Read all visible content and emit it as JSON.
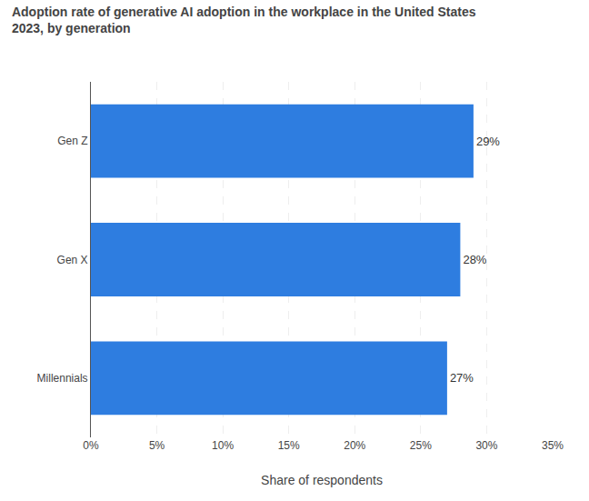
{
  "chart_data": {
    "type": "bar",
    "orientation": "horizontal",
    "title": "Adoption rate of generative AI adoption in the workplace in the United States",
    "subtitle": "2023, by generation",
    "categories": [
      "Millennials",
      "Gen X",
      "Gen Z"
    ],
    "values": [
      27,
      28,
      29
    ],
    "value_labels": [
      "27%",
      "28%",
      "29%"
    ],
    "data_labels": true,
    "color": "#2e7de0",
    "xlabel": "Share of respondents",
    "xlim": [
      0,
      35
    ],
    "xticks": [
      {
        "value": 0,
        "label": "0%"
      },
      {
        "value": 5,
        "label": "5%"
      },
      {
        "value": 10,
        "label": "10%"
      },
      {
        "value": 15,
        "label": "15%"
      },
      {
        "value": 20,
        "label": "20%"
      },
      {
        "value": 25,
        "label": "25%"
      },
      {
        "value": 30,
        "label": "30%"
      },
      {
        "value": 35,
        "label": "35%"
      }
    ],
    "grid": true
  }
}
